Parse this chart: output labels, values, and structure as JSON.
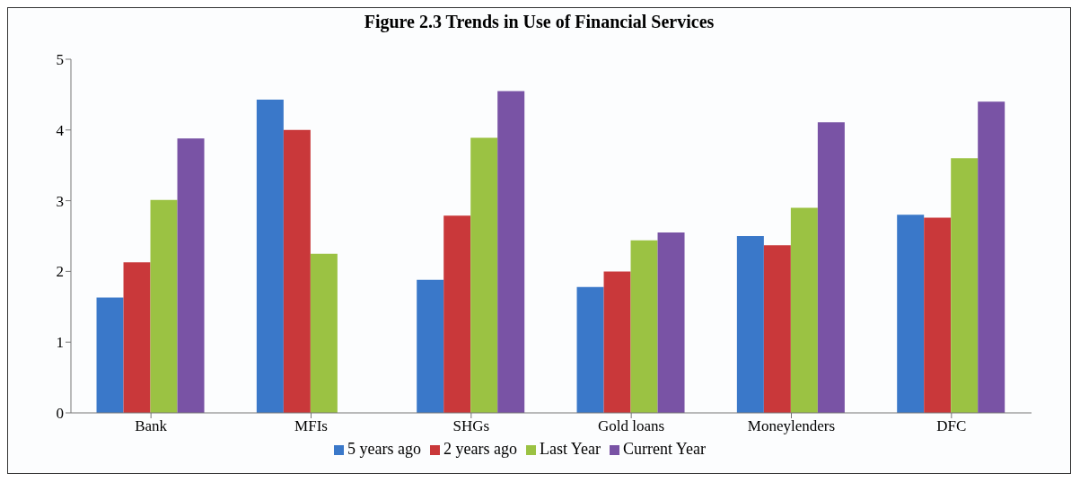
{
  "chart_data": {
    "type": "bar",
    "title": "Figure 2.3 Trends in Use of Financial Services",
    "categories": [
      "Bank",
      "MFIs",
      "SHGs",
      "Gold loans",
      "Moneylenders",
      "DFC"
    ],
    "series": [
      {
        "name": "5 years ago",
        "color": "#3a78c9",
        "values": [
          1.63,
          4.43,
          1.88,
          1.78,
          2.5,
          2.8
        ]
      },
      {
        "name": "2 years ago",
        "color": "#c9383a",
        "values": [
          2.13,
          4.0,
          2.79,
          2.0,
          2.37,
          2.76
        ]
      },
      {
        "name": "Last Year",
        "color": "#9bc243",
        "values": [
          3.01,
          2.25,
          3.89,
          2.44,
          2.9,
          3.6
        ]
      },
      {
        "name": "Current Year",
        "color": "#7953a5",
        "values": [
          3.88,
          null,
          4.55,
          2.55,
          4.11,
          4.4
        ]
      }
    ],
    "ylim": [
      0,
      5
    ],
    "yticks": [
      0,
      1,
      2,
      3,
      4,
      5
    ],
    "grid": false,
    "legend": "bottom"
  }
}
